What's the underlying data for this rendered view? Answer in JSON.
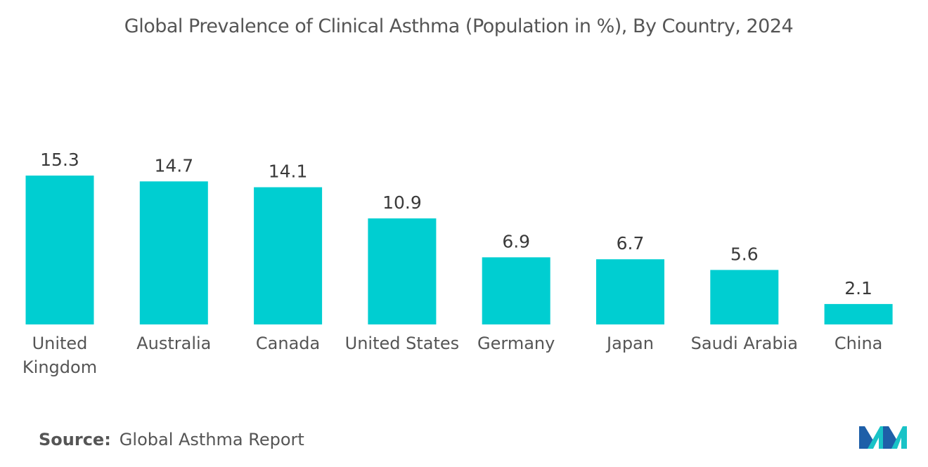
{
  "chart_data": {
    "type": "bar",
    "title": "Global Prevalence of Clinical Asthma  (Population in %), By Country, 2024",
    "categories": [
      "United Kingdom",
      "Australia",
      "Canada",
      "United States",
      "Germany",
      "Japan",
      "Saudi Arabia",
      "China"
    ],
    "category_lines": [
      [
        "United",
        "Kingdom"
      ],
      [
        "Australia"
      ],
      [
        "Canada"
      ],
      [
        "United States"
      ],
      [
        "Germany"
      ],
      [
        "Japan"
      ],
      [
        "Saudi Arabia"
      ],
      [
        "China"
      ]
    ],
    "values": [
      15.3,
      14.7,
      14.1,
      10.9,
      6.9,
      6.7,
      5.6,
      2.1
    ],
    "value_labels": [
      "15.3",
      "14.7",
      "14.1",
      "10.9",
      "6.9",
      "6.7",
      "5.6",
      "2.1"
    ],
    "xlabel": "",
    "ylabel": "",
    "ylim": [
      0,
      15.3
    ],
    "grid": false,
    "bar_color": "#00ced1"
  },
  "source": {
    "label": "Source:",
    "text": "Global Asthma Report"
  },
  "logo": {
    "icon": "mordor-intelligence-logo",
    "colors": [
      "#1e5fa8",
      "#19c3c7"
    ]
  }
}
